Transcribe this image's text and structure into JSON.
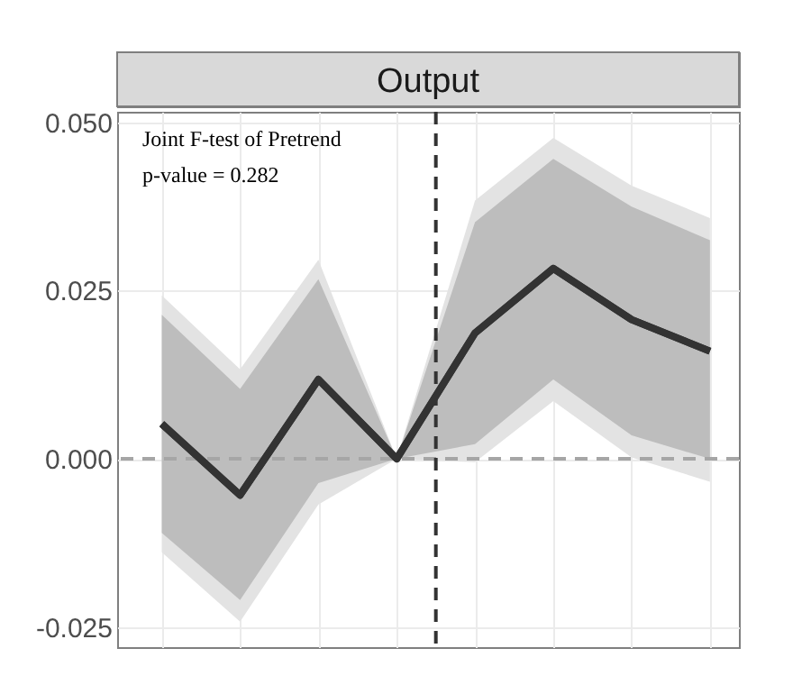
{
  "chart_data": {
    "type": "line",
    "title": "Output",
    "annotations": [
      "Joint F-test of Pretrend",
      "p-value = 0.282"
    ],
    "categories": [
      null,
      null,
      null,
      null,
      null,
      null,
      null,
      null
    ],
    "series": [
      {
        "type": "line",
        "color": "#333333",
        "values": [
          0.0052,
          -0.0054,
          0.0118,
          0,
          0.0187,
          0.0283,
          0.0207,
          0.016
        ],
        "lower": [
          -0.0139,
          -0.0242,
          -0.0068,
          0,
          -0.0005,
          0.0086,
          0.0002,
          -0.0034
        ],
        "upper": [
          0.0243,
          0.0133,
          0.0296,
          0,
          0.0384,
          0.0477,
          0.0406,
          0.0358
        ]
      },
      {
        "type": "line",
        "color": "#333333",
        "values": [
          0.0052,
          -0.0054,
          0.0118,
          0,
          0.0187,
          0.0283,
          0.0207,
          0.016
        ],
        "lower": [
          -0.011,
          -0.021,
          -0.0036,
          0,
          0.0022,
          0.0118,
          0.0035,
          0
        ],
        "upper": [
          0.0214,
          0.0104,
          0.0267,
          0,
          0.0352,
          0.0446,
          0.0375,
          0.0325
        ]
      }
    ],
    "ylim": [
      -0.028,
      0.0516
    ],
    "yticks": [
      {
        "value": -0.025,
        "label": "-0.025"
      },
      {
        "value": 0,
        "label": "0.000"
      },
      {
        "value": 0.025,
        "label": "0.025"
      },
      {
        "value": 0.05,
        "label": "0.050"
      }
    ],
    "ref_lines": [
      {
        "axis": "y",
        "value": 0,
        "color": "#a6a6a6",
        "line_style": "dashed"
      }
    ],
    "grid": true,
    "tick_labels": "y",
    "line_style": "solid",
    "marker": "none"
  }
}
